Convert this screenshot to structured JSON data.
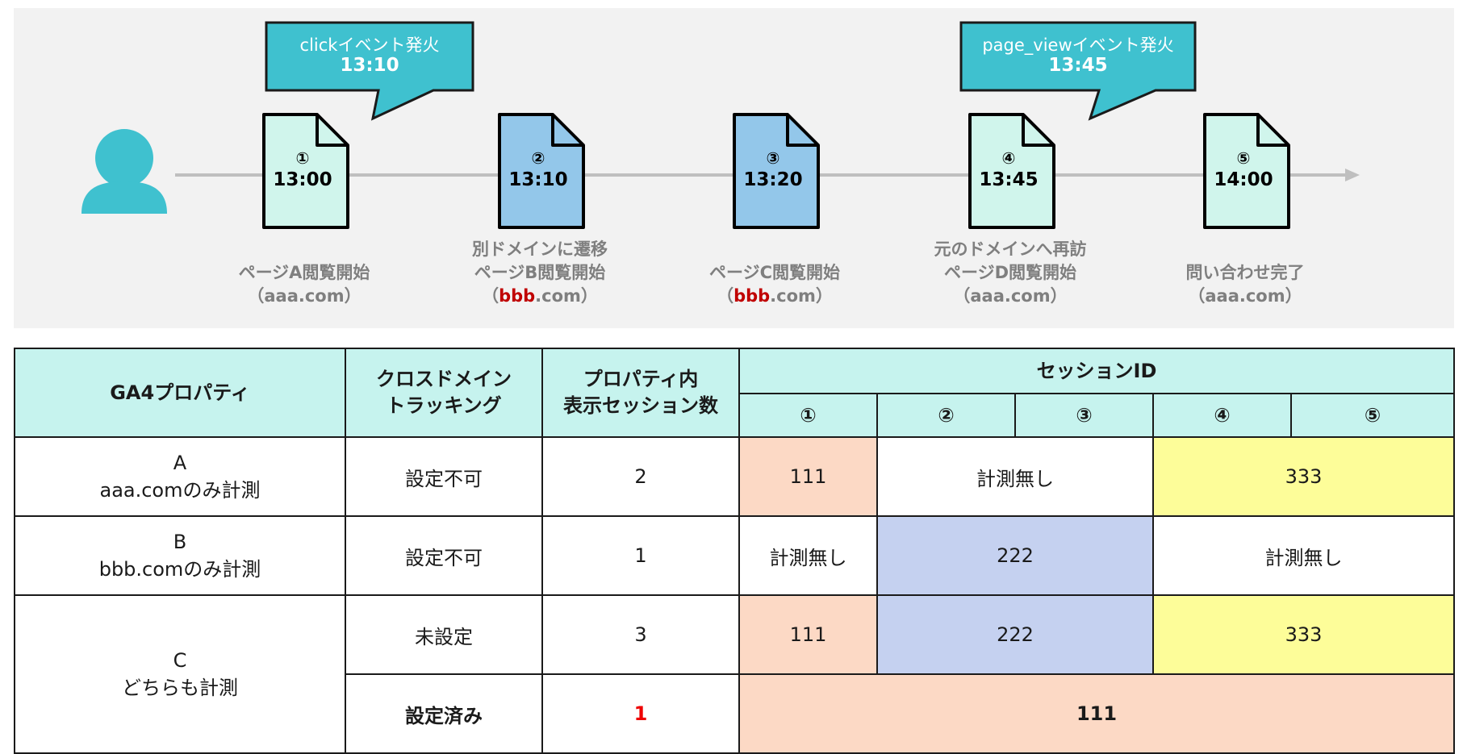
{
  "timeline": {
    "steps": [
      {
        "num": "①",
        "time": "13:00",
        "caption_lines": [
          "ページA閲覧開始"
        ],
        "domain_open": "（",
        "domain_prefix": "aaa",
        "domain_suffix": ".com）",
        "domain_highlight": false
      },
      {
        "num": "②",
        "time": "13:10",
        "caption_lines": [
          "別ドメインに遷移",
          "ページB閲覧開始"
        ],
        "domain_open": "（",
        "domain_prefix": "bbb",
        "domain_suffix": ".com）",
        "domain_highlight": true
      },
      {
        "num": "③",
        "time": "13:20",
        "caption_lines": [
          "ページC閲覧開始"
        ],
        "domain_open": "（",
        "domain_prefix": "bbb",
        "domain_suffix": ".com）",
        "domain_highlight": true
      },
      {
        "num": "④",
        "time": "13:45",
        "caption_lines": [
          "元のドメインへ再訪",
          "ページD閲覧開始"
        ],
        "domain_open": "（",
        "domain_prefix": "aaa",
        "domain_suffix": ".com）",
        "domain_highlight": false
      },
      {
        "num": "⑤",
        "time": "14:00",
        "caption_lines": [
          "問い合わせ完了"
        ],
        "domain_open": "（",
        "domain_prefix": "aaa",
        "domain_suffix": ".com）",
        "domain_highlight": false
      }
    ],
    "callouts": [
      {
        "title": "clickイベント発火",
        "time": "13:10"
      },
      {
        "title": "page_viewイベント発火",
        "time": "13:45"
      }
    ]
  },
  "table": {
    "headers": {
      "property": "GA4プロパティ",
      "cross_domain_line1": "クロスドメイン",
      "cross_domain_line2": "トラッキング",
      "sessions_line1": "プロパティ内",
      "sessions_line2": "表示セッション数",
      "session_id": "セッションID",
      "steps": [
        "①",
        "②",
        "③",
        "④",
        "⑤"
      ]
    },
    "row_a": {
      "prop_line1": "A",
      "prop_line2": "aaa.comのみ計測",
      "cross": "設定不可",
      "count": "2",
      "ids": [
        "111",
        "計測無し",
        "333"
      ]
    },
    "row_b": {
      "prop_line1": "B",
      "prop_line2": "bbb.comのみ計測",
      "cross": "設定不可",
      "count": "1",
      "ids": [
        "計測無し",
        "222",
        "計測無し"
      ]
    },
    "row_c": {
      "prop_line1": "C",
      "prop_line2": "どちらも計測",
      "unset": {
        "cross": "未設定",
        "count": "3",
        "ids": [
          "111",
          "222",
          "333"
        ]
      },
      "set": {
        "cross": "設定済み",
        "count": "1",
        "ids": [
          "111"
        ]
      }
    }
  },
  "colors": {
    "teal": "#3fc1cf",
    "page_white": "#d0f5ec",
    "page_blue": "#93c7ea",
    "salmon": "#fcd9c5",
    "blue": "#c5d1f0",
    "yellow": "#fdfd99",
    "header": "#c6f3ee",
    "highlight_red": "#c00000"
  }
}
